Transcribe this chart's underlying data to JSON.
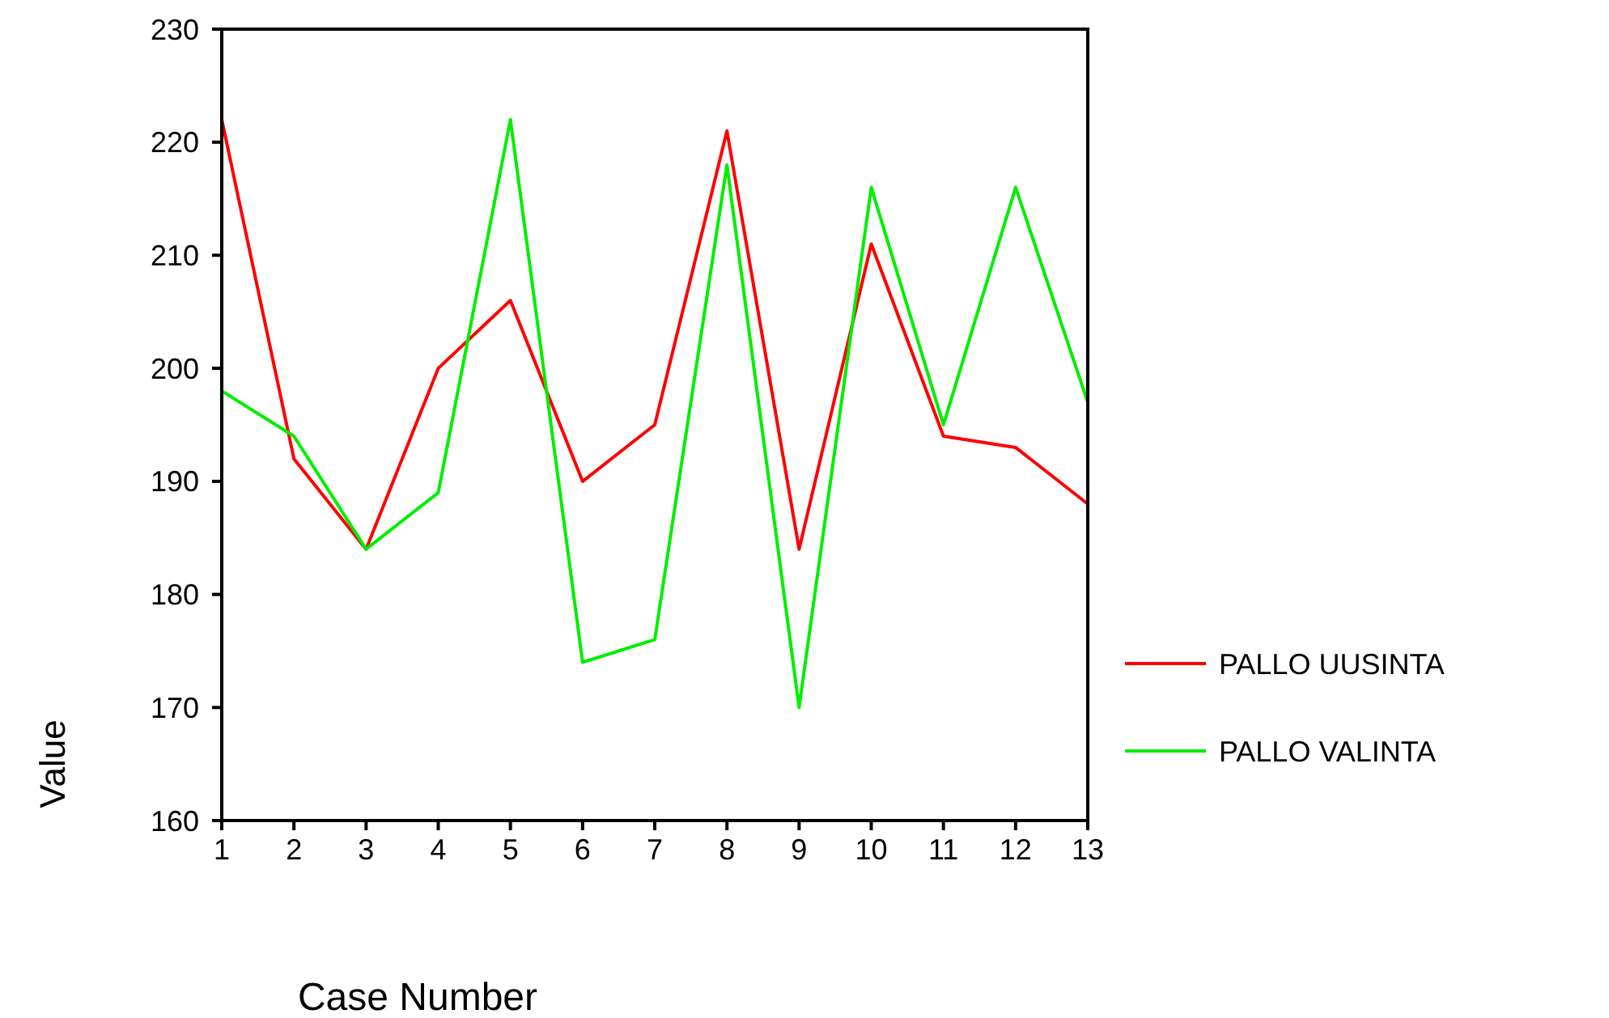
{
  "chart_data": {
    "type": "line",
    "xlabel": "Case Number",
    "ylabel": "Value",
    "x": [
      1,
      2,
      3,
      4,
      5,
      6,
      7,
      8,
      9,
      10,
      11,
      12,
      13
    ],
    "series": [
      {
        "name": "PALLO UUSINTA",
        "color": "#ff0000",
        "values": [
          222,
          192,
          184,
          200,
          206,
          190,
          195,
          221,
          184,
          211,
          194,
          193,
          188
        ]
      },
      {
        "name": "PALLO VALINTA",
        "color": "#00ee00",
        "values": [
          198,
          194,
          184,
          189,
          222,
          174,
          176,
          218,
          170,
          216,
          195,
          216,
          197
        ]
      }
    ],
    "xlim": [
      1,
      13
    ],
    "xticks": [
      1,
      2,
      3,
      4,
      5,
      6,
      7,
      8,
      9,
      10,
      11,
      12,
      13
    ],
    "ylim": [
      160,
      230
    ],
    "yticks": [
      160,
      170,
      180,
      190,
      200,
      210,
      220,
      230
    ],
    "grid": false,
    "legend": "right",
    "marker": "none",
    "line_style": "solid"
  }
}
